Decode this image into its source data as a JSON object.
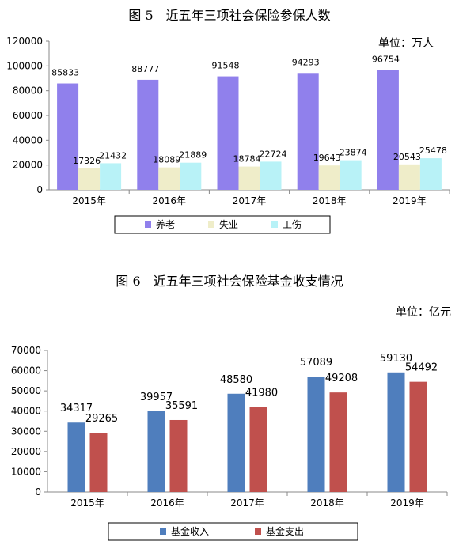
{
  "chart_data": [
    {
      "type": "bar",
      "title": "图 5　近五年三项社会保险参保人数",
      "unit": "单位：万人",
      "categories": [
        "2015年",
        "2016年",
        "2017年",
        "2018年",
        "2019年"
      ],
      "ylim": [
        0,
        120000
      ],
      "yticks": [
        0,
        20000,
        40000,
        60000,
        80000,
        100000,
        120000
      ],
      "series": [
        {
          "name": "养老",
          "color": "#9080ec",
          "values": [
            85833,
            88777,
            91548,
            94293,
            96754
          ]
        },
        {
          "name": "失业",
          "color": "#efedc9",
          "values": [
            17326,
            18089,
            18784,
            19643,
            20543
          ]
        },
        {
          "name": "工伤",
          "color": "#b8f2f7",
          "values": [
            21432,
            21889,
            22724,
            23874,
            25478
          ]
        }
      ],
      "legend": "bottom"
    },
    {
      "type": "bar",
      "title": "图 6　近五年三项社会保险基金收支情况",
      "unit": "单位：亿元",
      "categories": [
        "2015年",
        "2016年",
        "2017年",
        "2018年",
        "2019年"
      ],
      "ylim": [
        0,
        70000
      ],
      "yticks": [
        0,
        10000,
        20000,
        30000,
        40000,
        50000,
        60000,
        70000
      ],
      "series": [
        {
          "name": "基金收入",
          "color": "#4f7ebd",
          "values": [
            34317,
            39957,
            48580,
            57089,
            59130
          ]
        },
        {
          "name": "基金支出",
          "color": "#c0504d",
          "values": [
            29265,
            35591,
            41980,
            49208,
            54492
          ]
        }
      ],
      "legend": "bottom"
    }
  ]
}
